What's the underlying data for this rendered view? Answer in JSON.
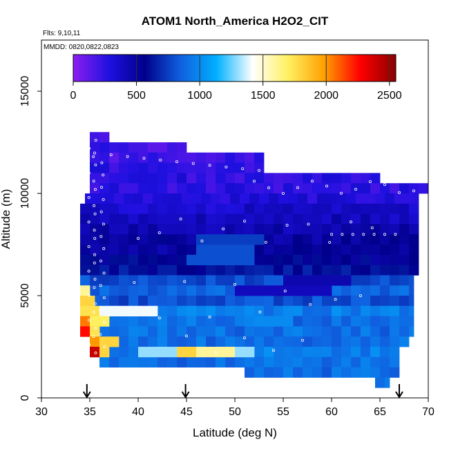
{
  "chart_data": {
    "type": "heatmap",
    "title": "ATOM1 North_America H2O2_CIT",
    "flights_label": "Flts: 9,10,11",
    "dates_label": "MMDD: 0820,0822,0823",
    "xlabel": "Latitude (deg N)",
    "ylabel": "Altitude (m)",
    "xlim": [
      30,
      70
    ],
    "ylim": [
      0,
      17500
    ],
    "x_ticks": [
      "30",
      "35",
      "40",
      "45",
      "50",
      "55",
      "60",
      "65",
      "70"
    ],
    "y_ticks": [
      "0",
      "5000",
      "10000",
      "15000"
    ],
    "colorbar": {
      "range": [
        0,
        2550
      ],
      "ticks": [
        "0",
        "500",
        "1000",
        "1500",
        "2000",
        "2500"
      ],
      "colors": [
        "#8b1ff0",
        "#1f10e0",
        "#00008b",
        "#1060e0",
        "#00b0ff",
        "#ffffff",
        "#fff060",
        "#ffa000",
        "#ff0000",
        "#8b0000"
      ]
    },
    "arrows_at_latitude": [
      34.7,
      44.9,
      67.0
    ],
    "bands": [
      {
        "alt": [
          12500,
          13000
        ],
        "lat": [
          35,
          37
        ],
        "value": 200
      },
      {
        "alt": [
          12000,
          12500
        ],
        "lat": [
          35,
          45
        ],
        "value": 200
      },
      {
        "alt": [
          11500,
          12000
        ],
        "lat": [
          35,
          53
        ],
        "value": 200
      },
      {
        "alt": [
          11000,
          11500
        ],
        "lat": [
          35,
          53
        ],
        "value": 250
      },
      {
        "alt": [
          10500,
          11000
        ],
        "lat": [
          35,
          65
        ],
        "value": 250
      },
      {
        "alt": [
          10000,
          10500
        ],
        "lat": [
          35,
          70
        ],
        "value": 250
      },
      {
        "alt": [
          9500,
          10000
        ],
        "lat": [
          34.5,
          69
        ],
        "value": 300
      },
      {
        "alt": [
          9000,
          9500
        ],
        "lat": [
          34,
          69
        ],
        "value": 350
      },
      {
        "alt": [
          8500,
          9000
        ],
        "lat": [
          34,
          69
        ],
        "value": 400
      },
      {
        "alt": [
          8000,
          8500
        ],
        "lat": [
          34,
          69
        ],
        "value": 450
      },
      {
        "alt": [
          7500,
          8000
        ],
        "lat": [
          34,
          69
        ],
        "value": 500
      },
      {
        "alt": [
          7000,
          7500
        ],
        "lat": [
          34,
          69
        ],
        "value": 500
      },
      {
        "alt": [
          6500,
          7000
        ],
        "lat": [
          34,
          69
        ],
        "value": 550
      },
      {
        "alt": [
          6000,
          6500
        ],
        "lat": [
          34,
          69
        ],
        "value": 600
      },
      {
        "alt": [
          5500,
          6000
        ],
        "lat": [
          34,
          68.5
        ],
        "value": 800
      },
      {
        "alt": [
          5000,
          5500
        ],
        "lat": [
          34,
          68.5
        ],
        "value": 850
      },
      {
        "alt": [
          4500,
          5000
        ],
        "lat": [
          34,
          68.5
        ],
        "value": 800
      },
      {
        "alt": [
          4000,
          4500
        ],
        "lat": [
          34,
          68.5
        ],
        "value": 950
      },
      {
        "alt": [
          3500,
          4000
        ],
        "lat": [
          34,
          68.5
        ],
        "value": 900
      },
      {
        "alt": [
          3000,
          3500
        ],
        "lat": [
          34,
          68.5
        ],
        "value": 900
      },
      {
        "alt": [
          2500,
          3000
        ],
        "lat": [
          35,
          68
        ],
        "value": 900
      },
      {
        "alt": [
          2000,
          2500
        ],
        "lat": [
          35,
          67
        ],
        "value": 950
      },
      {
        "alt": [
          1500,
          2000
        ],
        "lat": [
          36,
          67
        ],
        "value": 900
      },
      {
        "alt": [
          1000,
          1500
        ],
        "lat": [
          51,
          67
        ],
        "value": 900
      },
      {
        "alt": [
          500,
          1000
        ],
        "lat": [
          64.5,
          66
        ],
        "value": 900
      }
    ],
    "hotspots": [
      {
        "alt": [
          5000,
          5500
        ],
        "lat": [
          34,
          35
        ],
        "value": 1600
      },
      {
        "alt": [
          4500,
          5000
        ],
        "lat": [
          34,
          35.5
        ],
        "value": 1800
      },
      {
        "alt": [
          4000,
          4500
        ],
        "lat": [
          34,
          36
        ],
        "value": 1750
      },
      {
        "alt": [
          4000,
          4500
        ],
        "lat": [
          36,
          42
        ],
        "value": 1400
      },
      {
        "alt": [
          3500,
          4000
        ],
        "lat": [
          34,
          35
        ],
        "value": 2050
      },
      {
        "alt": [
          3500,
          4000
        ],
        "lat": [
          35,
          37
        ],
        "value": 1700
      },
      {
        "alt": [
          3000,
          3500
        ],
        "lat": [
          34,
          35
        ],
        "value": 2250
      },
      {
        "alt": [
          3000,
          3500
        ],
        "lat": [
          35,
          36
        ],
        "value": 1750
      },
      {
        "alt": [
          2500,
          3000
        ],
        "lat": [
          35,
          36
        ],
        "value": 2000
      },
      {
        "alt": [
          2500,
          3000
        ],
        "lat": [
          36,
          38
        ],
        "value": 1800
      },
      {
        "alt": [
          2000,
          2500
        ],
        "lat": [
          35,
          36
        ],
        "value": 2400
      },
      {
        "alt": [
          2000,
          2500
        ],
        "lat": [
          36,
          37
        ],
        "value": 1800
      },
      {
        "alt": [
          2000,
          2500
        ],
        "lat": [
          44,
          46
        ],
        "value": 1800
      },
      {
        "alt": [
          2000,
          2500
        ],
        "lat": [
          46,
          50
        ],
        "value": 1600
      },
      {
        "alt": [
          2000,
          2500
        ],
        "lat": [
          40,
          44
        ],
        "value": 1300
      },
      {
        "alt": [
          2000,
          2500
        ],
        "lat": [
          50,
          52
        ],
        "value": 1300
      },
      {
        "alt": [
          6500,
          7000
        ],
        "lat": [
          45,
          52
        ],
        "value": 800
      },
      {
        "alt": [
          7000,
          7500
        ],
        "lat": [
          46,
          52
        ],
        "value": 800
      },
      {
        "alt": [
          7500,
          8000
        ],
        "lat": [
          46,
          53
        ],
        "value": 750
      },
      {
        "alt": [
          5000,
          5500
        ],
        "lat": [
          50,
          60
        ],
        "value": 400
      },
      {
        "alt": [
          5500,
          6000
        ],
        "lat": [
          55,
          62
        ],
        "value": 450
      },
      {
        "alt": [
          3500,
          4000
        ],
        "lat": [
          52,
          56
        ],
        "value": 1000
      }
    ]
  }
}
